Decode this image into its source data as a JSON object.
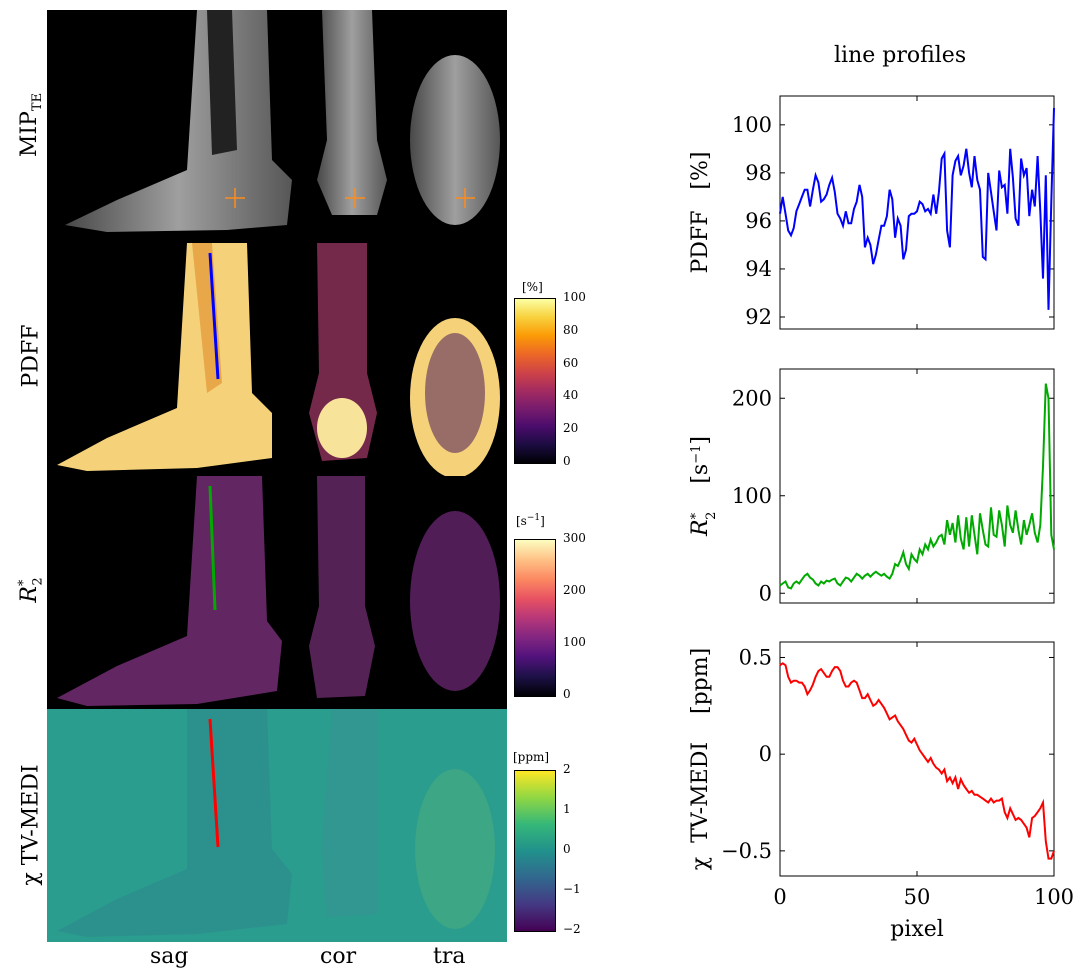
{
  "rows": {
    "mip": {
      "label": "MIP",
      "sub": "TE"
    },
    "pdff": {
      "label": "PDFF"
    },
    "r2": {
      "label": "R",
      "sup": "*",
      "sub": "2"
    },
    "chi": {
      "label": "χ  TV-MEDI"
    }
  },
  "columns": [
    "sag",
    "cor",
    "tra"
  ],
  "colorbars": [
    {
      "unit": "[%]",
      "ticks": [
        "100",
        "80",
        "60",
        "40",
        "20",
        "0"
      ],
      "colormap": "inferno"
    },
    {
      "unit": "[s−1]",
      "unit_base": "[s",
      "unit_sup": "−1",
      "unit_end": "]",
      "ticks": [
        "300",
        "200",
        "100",
        "0"
      ],
      "colormap": "magma"
    },
    {
      "unit": "[ppm]",
      "ticks": [
        "2",
        "1",
        "0",
        "−1",
        "−2"
      ],
      "colormap": "viridis"
    }
  ],
  "profiles_title": "line profiles",
  "profile_colors": {
    "pdff": "#0000ff",
    "r2": "#00aa00",
    "chi": "#ff0000",
    "marker": "#ff8c1a"
  },
  "chart_data": [
    {
      "type": "line",
      "ylabel": "PDFF   [%]",
      "xlim": [
        0,
        100
      ],
      "ylim": [
        91.5,
        101.2
      ],
      "yticks": [
        "100",
        "98",
        "96",
        "94",
        "92"
      ],
      "ytick_values": [
        100,
        98,
        96,
        94,
        92
      ],
      "series": [
        {
          "color": "#0000ff",
          "x": [
            0,
            1,
            2,
            3,
            4,
            5,
            6,
            7,
            8,
            9,
            10,
            11,
            12,
            13,
            14,
            15,
            16,
            17,
            18,
            19,
            20,
            21,
            22,
            23,
            24,
            25,
            26,
            27,
            28,
            29,
            30,
            31,
            32,
            33,
            34,
            35,
            36,
            37,
            38,
            39,
            40,
            41,
            42,
            43,
            44,
            45,
            46,
            47,
            48,
            49,
            50,
            51,
            52,
            53,
            54,
            55,
            56,
            57,
            58,
            59,
            60,
            61,
            62,
            63,
            64,
            65,
            66,
            67,
            68,
            69,
            70,
            71,
            72,
            73,
            74,
            75,
            76,
            77,
            78,
            79,
            80,
            81,
            82,
            83,
            84,
            85,
            86,
            87,
            88,
            89,
            90,
            91,
            92,
            93,
            94,
            95,
            96,
            97,
            98,
            99,
            100
          ],
          "values": [
            96.3,
            97.0,
            96.3,
            95.6,
            95.4,
            95.7,
            96.4,
            96.7,
            97.0,
            97.3,
            97.3,
            96.6,
            97.3,
            97.9,
            97.6,
            96.8,
            96.9,
            97.1,
            97.5,
            97.8,
            97.2,
            96.3,
            96.1,
            95.8,
            96.4,
            95.9,
            95.9,
            96.5,
            96.8,
            97.5,
            97.0,
            94.9,
            95.3,
            95.0,
            94.2,
            94.6,
            95.2,
            95.8,
            95.8,
            96.2,
            97.3,
            96.9,
            95.3,
            96.1,
            95.8,
            94.4,
            94.8,
            96.2,
            96.3,
            96.3,
            96.4,
            96.8,
            96.7,
            96.4,
            96.5,
            96.3,
            97.1,
            96.3,
            97.2,
            98.6,
            98.8,
            95.6,
            94.9,
            97.9,
            98.5,
            98.7,
            97.9,
            98.3,
            99.0,
            98.0,
            97.4,
            98.7,
            97.7,
            97.3,
            94.5,
            94.4,
            98.0,
            97.2,
            96.4,
            95.6,
            98.1,
            97.4,
            97.5,
            96.3,
            99.0,
            97.8,
            96.1,
            95.8,
            98.6,
            97.9,
            98.2,
            96.2,
            97.3,
            96.6,
            98.7,
            96.4,
            93.6,
            97.9,
            92.3,
            96.8,
            100.7
          ]
        }
      ]
    },
    {
      "type": "line",
      "ylabel_prefix": "R",
      "ylabel_sup": "*",
      "ylabel_sub": "2",
      "ylabel_unit": "[s",
      "ylabel_unit_sup": "−1",
      "ylabel_unit_end": "]",
      "xlim": [
        0,
        100
      ],
      "ylim": [
        -10,
        230
      ],
      "yticks": [
        "200",
        "100",
        "0"
      ],
      "ytick_values": [
        200,
        100,
        0
      ],
      "series": [
        {
          "color": "#00aa00",
          "x": [
            0,
            1,
            2,
            3,
            4,
            5,
            6,
            7,
            8,
            9,
            10,
            11,
            12,
            13,
            14,
            15,
            16,
            17,
            18,
            19,
            20,
            21,
            22,
            23,
            24,
            25,
            26,
            27,
            28,
            29,
            30,
            31,
            32,
            33,
            34,
            35,
            36,
            37,
            38,
            39,
            40,
            41,
            42,
            43,
            44,
            45,
            46,
            47,
            48,
            49,
            50,
            51,
            52,
            53,
            54,
            55,
            56,
            57,
            58,
            59,
            60,
            61,
            62,
            63,
            64,
            65,
            66,
            67,
            68,
            69,
            70,
            71,
            72,
            73,
            74,
            75,
            76,
            77,
            78,
            79,
            80,
            81,
            82,
            83,
            84,
            85,
            86,
            87,
            88,
            89,
            90,
            91,
            92,
            93,
            94,
            95,
            96,
            97,
            98,
            99,
            100
          ],
          "values": [
            8,
            10,
            12,
            6,
            5,
            10,
            12,
            10,
            14,
            18,
            20,
            16,
            14,
            10,
            8,
            12,
            10,
            13,
            12,
            14,
            15,
            10,
            8,
            12,
            16,
            15,
            12,
            16,
            20,
            18,
            15,
            18,
            20,
            17,
            20,
            22,
            20,
            18,
            20,
            17,
            15,
            20,
            30,
            28,
            34,
            42,
            30,
            25,
            40,
            35,
            32,
            45,
            40,
            50,
            45,
            55,
            48,
            52,
            58,
            60,
            50,
            75,
            60,
            72,
            52,
            80,
            56,
            45,
            78,
            48,
            80,
            60,
            40,
            82,
            65,
            50,
            48,
            88,
            60,
            58,
            85,
            70,
            48,
            90,
            70,
            62,
            85,
            65,
            50,
            75,
            60,
            70,
            82,
            62,
            52,
            70,
            130,
            215,
            200,
            60,
            45
          ]
        }
      ]
    },
    {
      "type": "line",
      "xlabel": "pixel",
      "ylabel": "χ  TV-MEDI    [ppm]",
      "xlim": [
        0,
        100
      ],
      "ylim": [
        -0.63,
        0.58
      ],
      "yticks": [
        "0.5",
        "0",
        "−0.5"
      ],
      "ytick_values": [
        0.5,
        0,
        -0.5
      ],
      "xticks": [
        "0",
        "50",
        "100"
      ],
      "xtick_values": [
        0,
        50,
        100
      ],
      "series": [
        {
          "color": "#ff0000",
          "x": [
            0,
            1,
            2,
            3,
            4,
            5,
            6,
            7,
            8,
            9,
            10,
            11,
            12,
            13,
            14,
            15,
            16,
            17,
            18,
            19,
            20,
            21,
            22,
            23,
            24,
            25,
            26,
            27,
            28,
            29,
            30,
            31,
            32,
            33,
            34,
            35,
            36,
            37,
            38,
            39,
            40,
            41,
            42,
            43,
            44,
            45,
            46,
            47,
            48,
            49,
            50,
            51,
            52,
            53,
            54,
            55,
            56,
            57,
            58,
            59,
            60,
            61,
            62,
            63,
            64,
            65,
            66,
            67,
            68,
            69,
            70,
            71,
            72,
            73,
            74,
            75,
            76,
            77,
            78,
            79,
            80,
            81,
            82,
            83,
            84,
            85,
            86,
            87,
            88,
            89,
            90,
            91,
            92,
            93,
            94,
            95,
            96,
            97,
            98,
            99,
            100
          ],
          "values": [
            0.46,
            0.47,
            0.46,
            0.4,
            0.37,
            0.38,
            0.38,
            0.37,
            0.37,
            0.35,
            0.31,
            0.33,
            0.36,
            0.4,
            0.43,
            0.44,
            0.42,
            0.4,
            0.4,
            0.43,
            0.45,
            0.45,
            0.43,
            0.38,
            0.35,
            0.35,
            0.37,
            0.38,
            0.37,
            0.33,
            0.29,
            0.29,
            0.31,
            0.28,
            0.25,
            0.26,
            0.28,
            0.26,
            0.24,
            0.21,
            0.18,
            0.19,
            0.2,
            0.17,
            0.15,
            0.13,
            0.1,
            0.07,
            0.06,
            0.08,
            0.05,
            0.02,
            0.0,
            -0.02,
            -0.04,
            -0.02,
            -0.05,
            -0.07,
            -0.08,
            -0.1,
            -0.08,
            -0.14,
            -0.12,
            -0.15,
            -0.12,
            -0.18,
            -0.13,
            -0.16,
            -0.18,
            -0.2,
            -0.19,
            -0.21,
            -0.21,
            -0.22,
            -0.23,
            -0.24,
            -0.25,
            -0.23,
            -0.25,
            -0.24,
            -0.24,
            -0.23,
            -0.3,
            -0.33,
            -0.28,
            -0.31,
            -0.34,
            -0.33,
            -0.34,
            -0.36,
            -0.38,
            -0.43,
            -0.33,
            -0.32,
            -0.3,
            -0.28,
            -0.25,
            -0.45,
            -0.54,
            -0.54,
            -0.5
          ]
        }
      ]
    }
  ]
}
